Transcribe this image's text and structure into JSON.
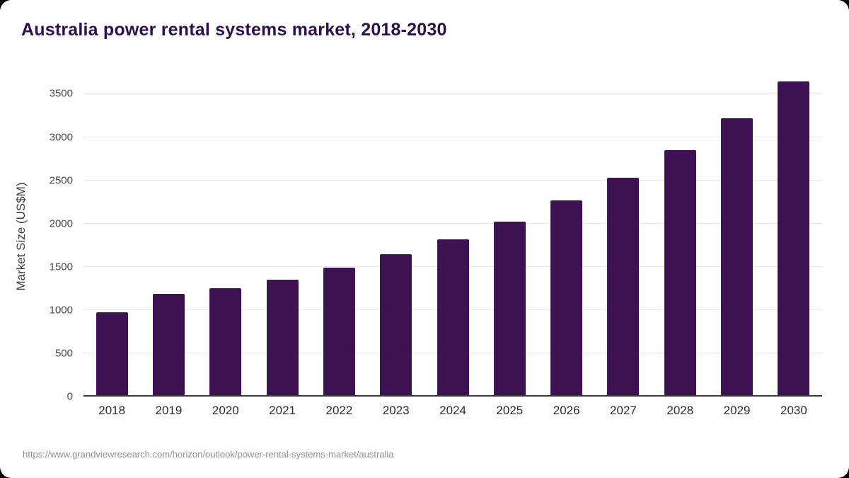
{
  "title": "Australia power rental systems market, 2018-2030",
  "source_url": "https://www.grandviewresearch.com/horizon/outlook/power-rental-systems-market/australia",
  "colors": {
    "bar": "#3d1152",
    "title": "#2e0f4f",
    "grid": "#e6e6e6",
    "axis": "#3a3a3a",
    "tick_text": "#4a4a4a",
    "source_text": "#8f8f8f"
  },
  "chart_data": {
    "type": "bar",
    "title": "Australia power rental systems market, 2018-2030",
    "xlabel": "",
    "ylabel": "Market Size (US$M)",
    "categories": [
      "2018",
      "2019",
      "2020",
      "2021",
      "2022",
      "2023",
      "2024",
      "2025",
      "2026",
      "2027",
      "2028",
      "2029",
      "2030"
    ],
    "values": [
      975,
      1190,
      1255,
      1350,
      1490,
      1645,
      1820,
      2020,
      2265,
      2530,
      2850,
      3215,
      3640
    ],
    "ylim": [
      0,
      3700
    ],
    "yticks": [
      0,
      500,
      1000,
      1500,
      2000,
      2500,
      3000,
      3500
    ],
    "grid": true,
    "legend": false
  }
}
